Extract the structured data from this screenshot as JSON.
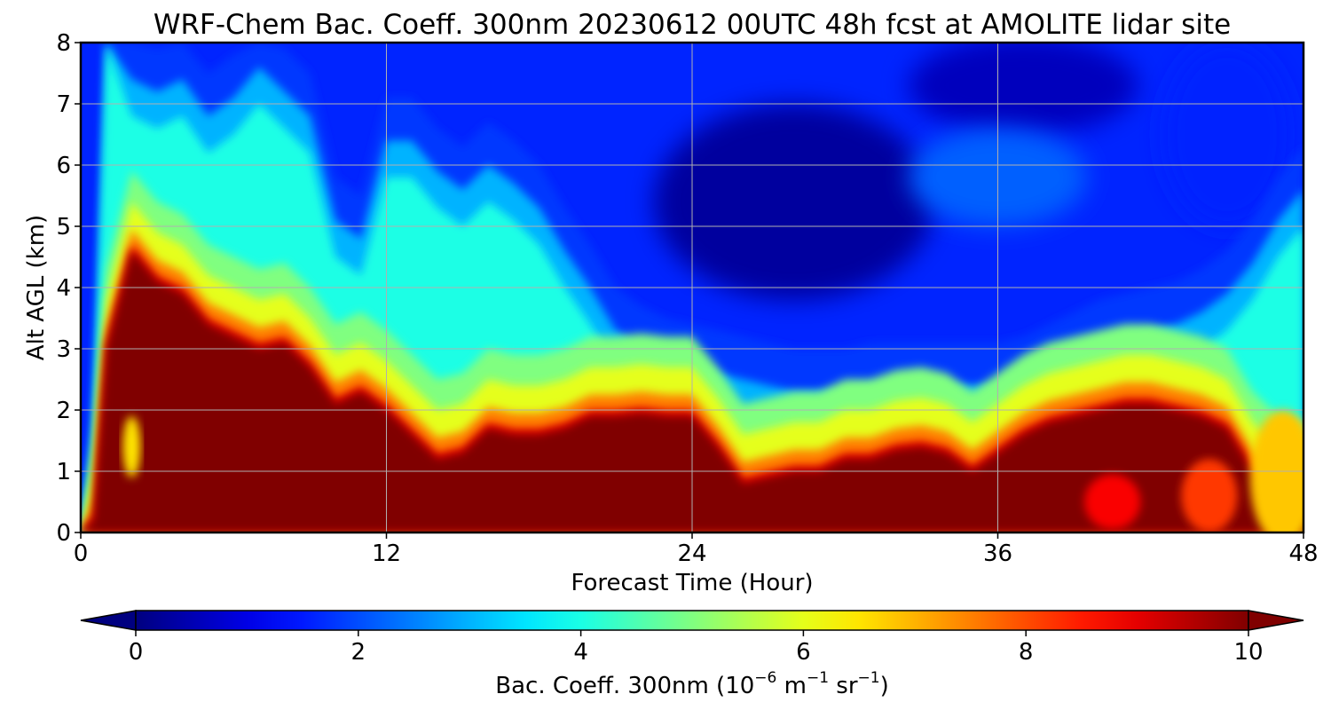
{
  "chart_data": {
    "type": "heatmap",
    "title": "WRF-Chem Bac. Coeff. 300nm  20230612 00UTC 48h fcst at AMOLITE lidar site",
    "xlabel": "Forecast Time (Hour)",
    "ylabel": "Alt AGL (km)",
    "xlim": [
      0,
      48
    ],
    "ylim": [
      0,
      8
    ],
    "x_ticks": [
      "0",
      "12",
      "24",
      "36",
      "48"
    ],
    "y_ticks": [
      "0",
      "1",
      "2",
      "3",
      "4",
      "5",
      "6",
      "7",
      "8"
    ],
    "grid": true,
    "colormap": "jet",
    "colorbar": {
      "orientation": "horizontal",
      "position": "bottom",
      "label_prefix": "Bac. Coeff. 300nm  (10",
      "label_exp1": "−6",
      "label_mid1": " m",
      "label_exp2": "−1",
      "label_mid2": " sr",
      "label_exp3": "−1",
      "label_suffix": ")",
      "range": [
        0,
        10
      ],
      "extend": "both",
      "ticks": [
        "0",
        "2",
        "4",
        "6",
        "8",
        "10"
      ]
    },
    "profile_hours": [
      0,
      0.5,
      1,
      2,
      3,
      4,
      5,
      6,
      7,
      8,
      9,
      10,
      11,
      12,
      13,
      14,
      15,
      16,
      17,
      18,
      19,
      20,
      21,
      22,
      23,
      24,
      25,
      26,
      27,
      28,
      29,
      30,
      31,
      32,
      33,
      34,
      35,
      36,
      37,
      38,
      39,
      40,
      41,
      42,
      43,
      44,
      45,
      46,
      47,
      48
    ],
    "red_layer_top_km": [
      0.0,
      0.2,
      3.0,
      4.6,
      4.1,
      3.9,
      3.4,
      3.2,
      3.0,
      3.1,
      2.7,
      2.1,
      2.3,
      2.0,
      1.6,
      1.2,
      1.3,
      1.7,
      1.6,
      1.6,
      1.7,
      1.9,
      1.9,
      1.95,
      1.9,
      1.9,
      1.4,
      0.8,
      0.9,
      1.0,
      1.0,
      1.2,
      1.2,
      1.35,
      1.4,
      1.3,
      1.0,
      1.3,
      1.6,
      1.8,
      1.9,
      2.0,
      2.1,
      2.1,
      2.0,
      1.9,
      1.7,
      1.0,
      0.6,
      0.5
    ],
    "aerosol_layer_top_km": [
      0.0,
      1.2,
      8.0,
      6.8,
      6.6,
      6.8,
      6.2,
      6.5,
      7.0,
      6.6,
      6.2,
      4.5,
      4.2,
      5.8,
      5.8,
      5.3,
      5.0,
      5.4,
      5.1,
      4.7,
      4.0,
      3.4,
      2.7,
      2.4,
      2.2,
      2.1,
      2.0,
      1.9,
      1.8,
      1.7,
      1.7,
      1.7,
      1.8,
      1.8,
      1.8,
      1.8,
      1.8,
      1.8,
      1.9,
      2.1,
      2.3,
      2.5,
      2.6,
      2.7,
      2.8,
      3.0,
      3.3,
      3.8,
      4.5,
      5.0
    ],
    "bands": [
      {
        "value": 1.8,
        "key": "aerosol_layer_top_km",
        "offset": 1.3
      },
      {
        "value": 3.0,
        "key": "aerosol_layer_top_km",
        "offset": 0.6
      },
      {
        "value": 4.0,
        "key": "aerosol_layer_top_km",
        "offset": 0.0
      },
      {
        "value": 5.0,
        "key": "red_layer_top_km",
        "offset": 1.3
      },
      {
        "value": 6.0,
        "key": "red_layer_top_km",
        "offset": 0.8
      },
      {
        "value": 7.5,
        "key": "red_layer_top_km",
        "offset": 0.35
      },
      {
        "value": 9.0,
        "key": "red_layer_top_km",
        "offset": 0.1
      },
      {
        "value": 10.0,
        "key": "red_layer_top_km",
        "offset": 0.0
      }
    ],
    "low_value_patches": [
      {
        "x": 28,
        "y": 5.4,
        "rx": 5.5,
        "ry": 1.6,
        "value": 0.3
      },
      {
        "x": 37,
        "y": 7.3,
        "rx": 4.5,
        "ry": 0.8,
        "value": 0.6
      },
      {
        "x": 45,
        "y": 6.5,
        "rx": 2.5,
        "ry": 1.5,
        "value": 1.6
      },
      {
        "x": 36,
        "y": 5.8,
        "rx": 3.5,
        "ry": 0.8,
        "value": 2.2
      }
    ],
    "embedded_patches": [
      {
        "x": 2,
        "y": 1.4,
        "rx": 0.35,
        "ry": 0.5,
        "value": 6.5
      },
      {
        "x": 40.5,
        "y": 0.5,
        "rx": 1.1,
        "ry": 0.45,
        "value": 8.8
      },
      {
        "x": 44.3,
        "y": 0.6,
        "rx": 1.1,
        "ry": 0.6,
        "value": 8.2
      },
      {
        "x": 47.2,
        "y": 0.9,
        "rx": 1.3,
        "ry": 1.1,
        "value": 6.8
      }
    ]
  }
}
